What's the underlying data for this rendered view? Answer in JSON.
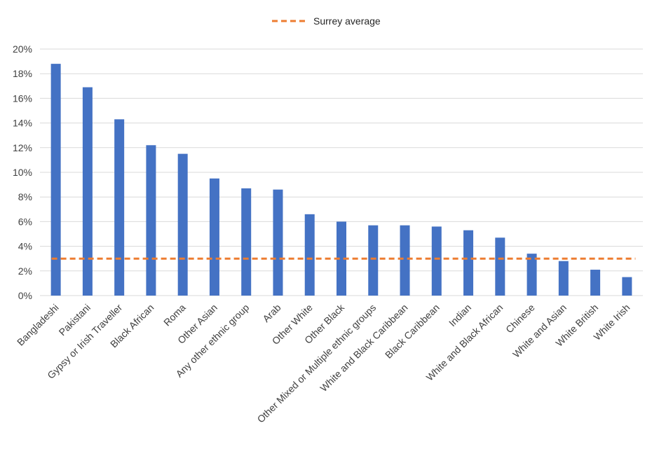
{
  "chart_data": {
    "type": "bar",
    "title": "",
    "xlabel": "",
    "ylabel": "",
    "ylim": [
      0,
      0.2
    ],
    "ytick_values": [
      0,
      0.02,
      0.04,
      0.06,
      0.08,
      0.1,
      0.12,
      0.14,
      0.16,
      0.18,
      0.2
    ],
    "ytick_labels": [
      "0%",
      "2%",
      "4%",
      "6%",
      "8%",
      "10%",
      "12%",
      "14%",
      "16%",
      "18%",
      "20%"
    ],
    "grid": true,
    "legend": "top-center",
    "categories": [
      "Bangladeshi",
      "Pakistani",
      "Gypsy or Irish Traveller",
      "Black African",
      "Roma",
      "Other Asian",
      "Any other ethnic group",
      "Arab",
      "Other White",
      "Other Black",
      "Other Mixed or Multiple ethnic groups",
      "White and Black Caribbean",
      "Black Caribbean",
      "Indian",
      "White and Black African",
      "Chinese",
      "White and Asian",
      "White British",
      "White Irish"
    ],
    "values": [
      0.188,
      0.169,
      0.143,
      0.122,
      0.115,
      0.095,
      0.087,
      0.086,
      0.066,
      0.06,
      0.057,
      0.057,
      0.056,
      0.053,
      0.047,
      0.034,
      0.028,
      0.021,
      0.015
    ],
    "reference_line": {
      "name": "Surrey average",
      "value": 0.03
    },
    "colors": {
      "bars": "#4472C4",
      "reference_line": "#ED7D31",
      "grid": "#D9D9D9",
      "text": "#404040"
    }
  }
}
